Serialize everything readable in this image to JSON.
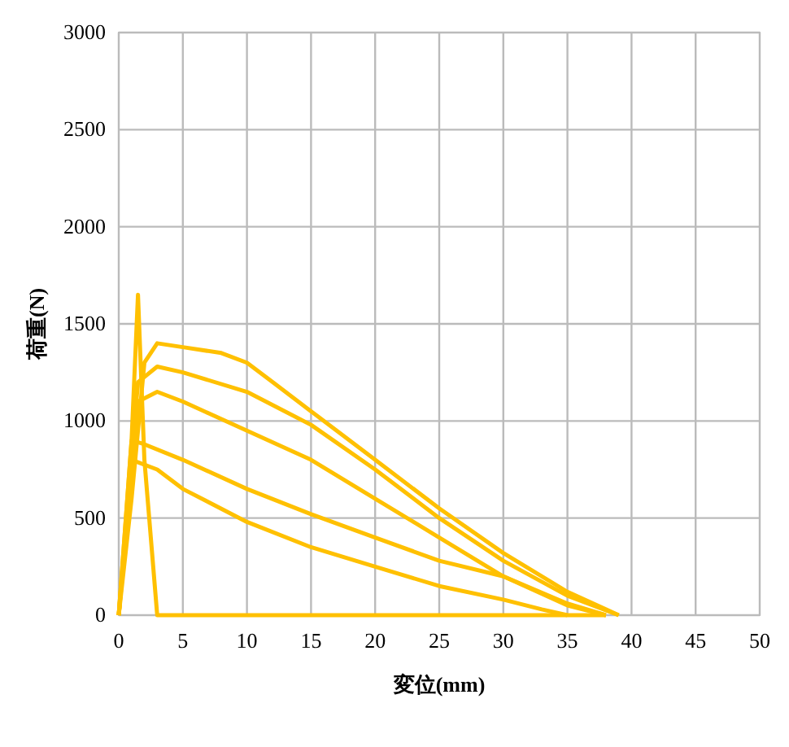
{
  "chart_data": {
    "type": "line",
    "xlabel": "変位(mm)",
    "ylabel": "荷重(N)",
    "xlim": [
      0,
      50
    ],
    "xticks": [
      0,
      5,
      10,
      15,
      20,
      25,
      30,
      35,
      40,
      45,
      50
    ],
    "ylim": [
      0,
      3000
    ],
    "yticks": [
      0,
      500,
      1000,
      1500,
      2000,
      2500,
      3000
    ],
    "grid": true,
    "line_style": "solid",
    "marker": "none",
    "series": [
      {
        "color": "#ffc000",
        "x": [
          0,
          1,
          2,
          3,
          5,
          8,
          10,
          12,
          15,
          20,
          25,
          30,
          35,
          38,
          39
        ],
        "values": [
          0,
          600,
          1300,
          1400,
          1380,
          1350,
          1300,
          1200,
          1050,
          800,
          550,
          320,
          120,
          30,
          0
        ]
      },
      {
        "color": "#ffc000",
        "x": [
          0,
          1.5,
          3,
          5,
          10,
          15,
          20,
          25,
          30,
          35,
          39
        ],
        "values": [
          0,
          1200,
          1280,
          1250,
          1150,
          980,
          750,
          500,
          280,
          100,
          0
        ]
      },
      {
        "color": "#ffc000",
        "x": [
          0,
          1.5,
          3,
          5,
          10,
          15,
          20,
          25,
          30,
          35,
          38
        ],
        "values": [
          0,
          1100,
          1150,
          1100,
          950,
          800,
          600,
          400,
          200,
          60,
          0
        ]
      },
      {
        "color": "#ffc000",
        "x": [
          0,
          1,
          2,
          5,
          10,
          15,
          20,
          25,
          30,
          35,
          38
        ],
        "values": [
          0,
          900,
          880,
          800,
          650,
          520,
          400,
          280,
          200,
          50,
          0
        ]
      },
      {
        "color": "#ffc000",
        "x": [
          0,
          1,
          3,
          5,
          10,
          15,
          20,
          25,
          30,
          33,
          35
        ],
        "values": [
          0,
          800,
          750,
          650,
          480,
          350,
          250,
          150,
          80,
          30,
          0
        ]
      },
      {
        "color": "#ffc000",
        "x": [
          0,
          1,
          1.5,
          2,
          3,
          10,
          38
        ],
        "values": [
          0,
          900,
          1650,
          800,
          0,
          0,
          0
        ]
      }
    ]
  }
}
